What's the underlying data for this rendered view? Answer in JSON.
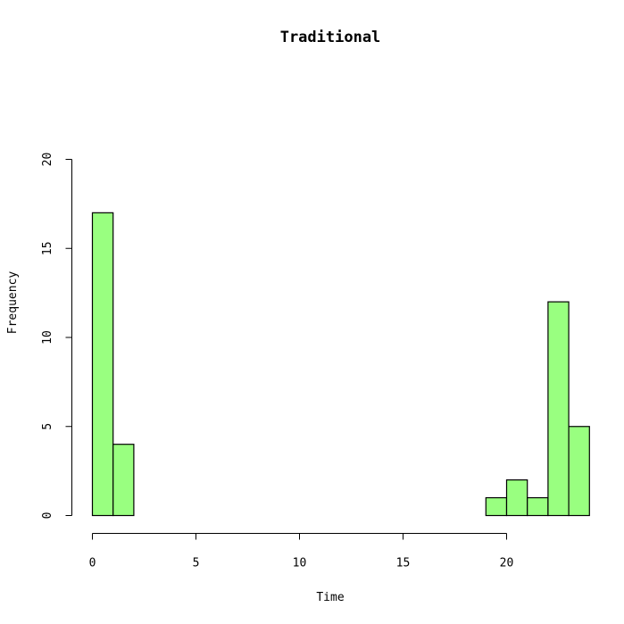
{
  "chart_data": {
    "type": "bar",
    "title": "Traditional",
    "xlabel": "Time",
    "ylabel": "Frequency",
    "xlim": [
      0,
      24
    ],
    "ylim": [
      0,
      20
    ],
    "x_ticks": [
      0,
      5,
      10,
      15,
      20
    ],
    "y_ticks": [
      0,
      5,
      10,
      15,
      20
    ],
    "bins": [
      {
        "start": 0,
        "end": 1,
        "value": 17
      },
      {
        "start": 1,
        "end": 2,
        "value": 4
      },
      {
        "start": 2,
        "end": 3,
        "value": 0
      },
      {
        "start": 3,
        "end": 4,
        "value": 0
      },
      {
        "start": 4,
        "end": 5,
        "value": 0
      },
      {
        "start": 5,
        "end": 6,
        "value": 0
      },
      {
        "start": 6,
        "end": 7,
        "value": 0
      },
      {
        "start": 7,
        "end": 8,
        "value": 0
      },
      {
        "start": 8,
        "end": 9,
        "value": 0
      },
      {
        "start": 9,
        "end": 10,
        "value": 0
      },
      {
        "start": 10,
        "end": 11,
        "value": 0
      },
      {
        "start": 11,
        "end": 12,
        "value": 0
      },
      {
        "start": 12,
        "end": 13,
        "value": 0
      },
      {
        "start": 13,
        "end": 14,
        "value": 0
      },
      {
        "start": 14,
        "end": 15,
        "value": 0
      },
      {
        "start": 15,
        "end": 16,
        "value": 0
      },
      {
        "start": 16,
        "end": 17,
        "value": 0
      },
      {
        "start": 17,
        "end": 18,
        "value": 0
      },
      {
        "start": 18,
        "end": 19,
        "value": 0
      },
      {
        "start": 19,
        "end": 20,
        "value": 1
      },
      {
        "start": 20,
        "end": 21,
        "value": 2
      },
      {
        "start": 21,
        "end": 22,
        "value": 1
      },
      {
        "start": 22,
        "end": 23,
        "value": 12
      },
      {
        "start": 23,
        "end": 24,
        "value": 5
      }
    ],
    "bar_color": "#99ff80",
    "grid": false,
    "legend": "none"
  }
}
